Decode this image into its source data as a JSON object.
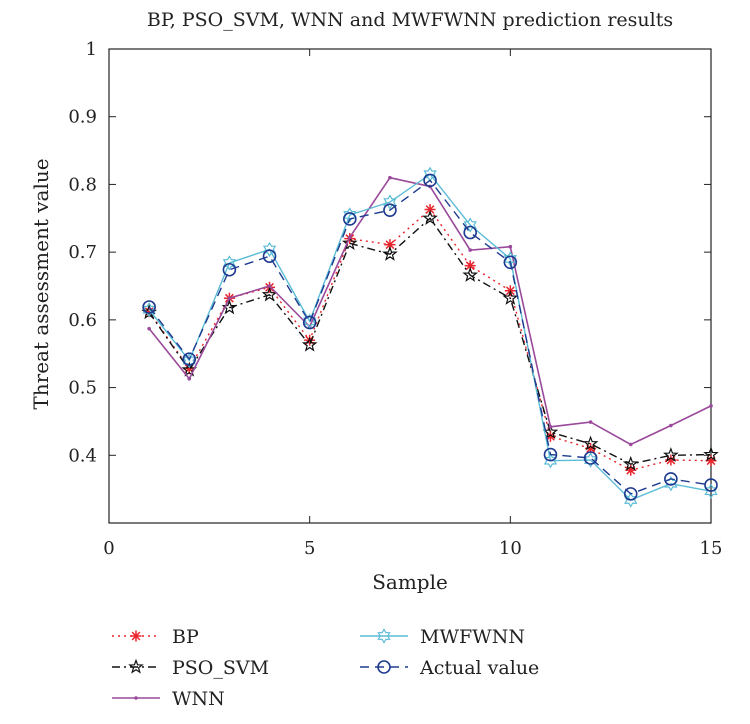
{
  "chart_data": {
    "type": "line",
    "title": "BP, PSO_SVM, WNN and MWFWNN prediction results",
    "xlabel": "Sample",
    "ylabel": "Threat assessment value",
    "xlim": [
      0,
      15
    ],
    "ylim": [
      0.3,
      1.0
    ],
    "xticks": [
      "0",
      "5",
      "10",
      "15"
    ],
    "yticks": [
      "0.4",
      "0.5",
      "0.6",
      "0.7",
      "0.8",
      "0.9",
      "1"
    ],
    "grid": false,
    "legend_position": "bottom",
    "x": [
      1,
      2,
      3,
      4,
      5,
      6,
      7,
      8,
      9,
      10,
      11,
      12,
      13,
      14,
      15
    ],
    "series": [
      {
        "name": "BP",
        "color": "#e8232b",
        "marker": "asterisk",
        "dash": "dotted",
        "values": [
          0.612,
          0.528,
          0.632,
          0.648,
          0.57,
          0.72,
          0.711,
          0.763,
          0.68,
          0.643,
          0.428,
          0.41,
          0.378,
          0.393,
          0.392
        ]
      },
      {
        "name": "PSO_SVM",
        "color": "#111111",
        "marker": "star",
        "dash": "dashdot",
        "values": [
          0.611,
          0.526,
          0.618,
          0.637,
          0.563,
          0.713,
          0.697,
          0.75,
          0.666,
          0.632,
          0.434,
          0.417,
          0.387,
          0.4,
          0.401
        ]
      },
      {
        "name": "WNN",
        "color": "#9a4a9a",
        "marker": "dot",
        "dash": "solid",
        "values": [
          0.587,
          0.513,
          0.632,
          0.65,
          0.59,
          0.722,
          0.81,
          0.797,
          0.703,
          0.708,
          0.442,
          0.449,
          0.416,
          0.444,
          0.473
        ]
      },
      {
        "name": "MWFWNN",
        "color": "#5bbcd6",
        "marker": "hexagram",
        "dash": "solid",
        "values": [
          0.615,
          0.54,
          0.684,
          0.704,
          0.598,
          0.755,
          0.774,
          0.815,
          0.74,
          0.69,
          0.392,
          0.393,
          0.334,
          0.358,
          0.347
        ]
      },
      {
        "name": "Actual value",
        "color": "#1f3b8f",
        "marker": "circle",
        "dash": "dashed",
        "values": [
          0.619,
          0.542,
          0.674,
          0.694,
          0.596,
          0.749,
          0.762,
          0.806,
          0.729,
          0.685,
          0.401,
          0.396,
          0.343,
          0.365,
          0.356
        ]
      }
    ]
  }
}
